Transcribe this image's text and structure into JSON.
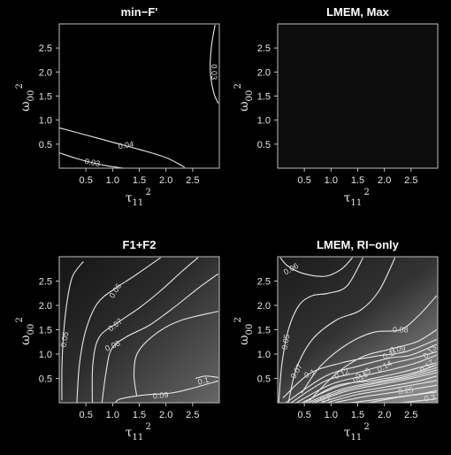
{
  "chart_data": [
    {
      "type": "contour",
      "title": "min−F'",
      "xlabel": "τ",
      "xlabel_sub": "11",
      "xlabel_sup": "2",
      "ylabel": "ω",
      "ylabel_sub": "00",
      "ylabel_sup": "2",
      "xlim": [
        0,
        3
      ],
      "ylim": [
        0,
        3
      ],
      "x_ticks": [
        "0.5",
        "1.0",
        "1.5",
        "2.0",
        "2.5"
      ],
      "y_ticks": [
        "0.5",
        "1.0",
        "1.5",
        "2.0",
        "2.5"
      ],
      "background": "#000000",
      "contours": [
        {
          "level": "0.04",
          "label_at": [
            1.25,
            0.48
          ],
          "label_angle": -10,
          "points": [
            [
              0,
              0.84
            ],
            [
              0.5,
              0.69
            ],
            [
              1.0,
              0.54
            ],
            [
              1.5,
              0.39
            ],
            [
              2.0,
              0.22
            ],
            [
              2.35,
              0.02
            ]
          ]
        },
        {
          "level": "0.03",
          "label_at": [
            0.62,
            0.12
          ],
          "label_angle": 12,
          "points": [
            [
              0,
              0.32
            ],
            [
              0.3,
              0.21
            ],
            [
              0.6,
              0.12
            ],
            [
              0.9,
              0.05
            ],
            [
              1.2,
              0.0
            ]
          ]
        },
        {
          "level": "0.03",
          "label_at": [
            2.9,
            2.0
          ],
          "label_angle": 90,
          "points": [
            [
              2.92,
              2.98
            ],
            [
              2.86,
              2.6
            ],
            [
              2.83,
              2.2
            ],
            [
              2.84,
              1.9
            ],
            [
              2.9,
              1.55
            ],
            [
              2.98,
              1.35
            ]
          ]
        }
      ]
    },
    {
      "type": "contour",
      "title": "LMEM, Max",
      "xlabel": "τ",
      "xlabel_sub": "11",
      "xlabel_sup": "2",
      "ylabel": "ω",
      "ylabel_sub": "00",
      "ylabel_sup": "2",
      "xlim": [
        0,
        3
      ],
      "ylim": [
        0,
        3
      ],
      "x_ticks": [
        "0.5",
        "1.0",
        "1.5",
        "2.0",
        "2.5"
      ],
      "y_ticks": [
        "0.5",
        "1.0",
        "1.5",
        "2.0",
        "2.5"
      ],
      "background": "#0c0c0c",
      "contours": []
    },
    {
      "type": "contour",
      "title": "F1+F2",
      "xlabel": "τ",
      "xlabel_sub": "11",
      "xlabel_sup": "2",
      "ylabel": "ω",
      "ylabel_sub": "00",
      "ylabel_sup": "2",
      "xlim": [
        0,
        3
      ],
      "ylim": [
        0,
        3
      ],
      "x_ticks": [
        "0.5",
        "1.0",
        "1.5",
        "2.0",
        "2.5"
      ],
      "y_ticks": [
        "0.5",
        "1.0",
        "1.5",
        "2.0",
        "2.5"
      ],
      "background": "gradient",
      "contours": [
        {
          "level": "0.05",
          "label_at": [
            0.1,
            1.3
          ],
          "label_angle": -80,
          "points": [
            [
              0.05,
              0.05
            ],
            [
              0.05,
              0.7
            ],
            [
              0.08,
              1.4
            ],
            [
              0.15,
              2.1
            ],
            [
              0.25,
              2.6
            ],
            [
              0.45,
              2.9
            ]
          ]
        },
        {
          "level": "0.06",
          "label_at": [
            1.05,
            2.3
          ],
          "label_angle": -58,
          "points": [
            [
              0.33,
              0.0
            ],
            [
              0.38,
              0.8
            ],
            [
              0.5,
              1.5
            ],
            [
              0.72,
              2.05
            ],
            [
              1.05,
              2.35
            ],
            [
              1.4,
              2.6
            ],
            [
              1.9,
              2.98
            ]
          ]
        },
        {
          "level": "0.07",
          "label_at": [
            1.05,
            1.6
          ],
          "label_angle": -38,
          "points": [
            [
              0.62,
              0.0
            ],
            [
              0.63,
              0.8
            ],
            [
              0.75,
              1.35
            ],
            [
              1.1,
              1.65
            ],
            [
              1.5,
              1.95
            ],
            [
              1.9,
              2.3
            ],
            [
              2.3,
              2.7
            ],
            [
              2.6,
              2.98
            ]
          ]
        },
        {
          "level": "0.08",
          "label_at": [
            1.0,
            1.17
          ],
          "label_angle": -25,
          "points": [
            [
              0.8,
              0.0
            ],
            [
              0.88,
              0.65
            ],
            [
              0.98,
              1.1
            ],
            [
              1.25,
              1.35
            ],
            [
              1.7,
              1.6
            ],
            [
              2.2,
              2.0
            ],
            [
              2.6,
              2.35
            ],
            [
              2.98,
              2.65
            ]
          ]
        },
        {
          "level": "0.09",
          "label_at": [
            1.9,
            0.15
          ],
          "label_angle": -5,
          "points": [
            [
              1.05,
              0.0
            ],
            [
              1.15,
              0.08
            ],
            [
              1.6,
              0.16
            ],
            [
              2.1,
              0.2
            ],
            [
              2.5,
              0.3
            ],
            [
              2.98,
              0.45
            ]
          ]
        },
        {
          "level": "0.1",
          "label_at": [
            2.7,
            0.45
          ],
          "label_angle": -15,
          "points": [
            [
              2.98,
              0.52
            ],
            [
              2.75,
              0.55
            ],
            [
              2.55,
              0.5
            ]
          ]
        },
        {
          "level": "0.09",
          "label_at": null,
          "label_angle": 0,
          "points": [
            [
              1.45,
              0.15
            ],
            [
              1.4,
              0.6
            ],
            [
              1.48,
              1.05
            ],
            [
              1.85,
              1.45
            ],
            [
              2.3,
              1.7
            ],
            [
              2.98,
              1.88
            ]
          ]
        }
      ]
    },
    {
      "type": "contour",
      "title": "LMEM, RI−only",
      "xlabel": "τ",
      "xlabel_sub": "11",
      "xlabel_sup": "2",
      "ylabel": "ω",
      "ylabel_sub": "00",
      "ylabel_sup": "2",
      "xlim": [
        0,
        3
      ],
      "ylim": [
        0,
        3
      ],
      "x_ticks": [
        "0.5",
        "1.0",
        "1.5",
        "2.0",
        "2.5"
      ],
      "y_ticks": [
        "0.5",
        "1.0",
        "1.5",
        "2.0",
        "2.5"
      ],
      "background": "gradient",
      "contours": [
        {
          "level": "0.06",
          "label_at": [
            0.25,
            2.75
          ],
          "label_angle": -30,
          "points": [
            [
              0.05,
              2.98
            ],
            [
              0.2,
              2.8
            ],
            [
              0.5,
              2.65
            ],
            [
              0.9,
              2.6
            ],
            [
              1.2,
              2.75
            ],
            [
              1.4,
              2.98
            ]
          ]
        },
        {
          "level": "0.05",
          "label_at": [
            0.15,
            1.25
          ],
          "label_angle": -80,
          "points": [
            [
              0.02,
              0.0
            ],
            [
              0.08,
              0.8
            ],
            [
              0.2,
              1.5
            ],
            [
              0.4,
              2.0
            ],
            [
              0.65,
              2.2
            ],
            [
              0.95,
              2.25
            ],
            [
              1.3,
              2.4
            ],
            [
              1.6,
              2.98
            ]
          ]
        },
        {
          "level": "0.07",
          "label_at": [
            0.35,
            0.65
          ],
          "label_angle": -60,
          "points": [
            [
              0.2,
              0.0
            ],
            [
              0.35,
              0.7
            ],
            [
              0.65,
              1.3
            ],
            [
              1.1,
              1.7
            ],
            [
              1.55,
              1.9
            ],
            [
              1.9,
              2.3
            ],
            [
              2.2,
              2.98
            ]
          ]
        },
        {
          "level": "0.08",
          "label_at": [
            2.3,
            1.5
          ],
          "label_angle": 0,
          "points": [
            [
              0.45,
              0.2
            ],
            [
              0.8,
              0.75
            ],
            [
              1.3,
              1.2
            ],
            [
              1.8,
              1.45
            ],
            [
              2.3,
              1.5
            ],
            [
              2.65,
              1.8
            ],
            [
              2.98,
              2.2
            ]
          ]
        },
        {
          "level": "0.09",
          "label_at": [
            2.25,
            1.1
          ],
          "label_angle": -8,
          "points": [
            [
              0.6,
              0.05
            ],
            [
              1.1,
              0.6
            ],
            [
              1.6,
              0.95
            ],
            [
              2.1,
              1.1
            ],
            [
              2.6,
              1.25
            ],
            [
              2.98,
              1.5
            ]
          ]
        },
        {
          "level": "0.1",
          "label_at": [
            0.6,
            0.6
          ],
          "label_angle": -25,
          "points": [
            [
              0.1,
              0.1
            ],
            [
              0.6,
              0.6
            ],
            [
              1.2,
              0.82
            ],
            [
              1.8,
              0.95
            ],
            [
              2.4,
              1.05
            ],
            [
              2.98,
              1.3
            ]
          ]
        },
        {
          "level": "0.11",
          "label_at": [
            2.1,
            1.0
          ],
          "label_angle": -25,
          "points": [
            [
              0.15,
              0.0
            ],
            [
              0.9,
              0.55
            ],
            [
              1.5,
              0.75
            ],
            [
              2.1,
              0.92
            ],
            [
              2.5,
              0.98
            ],
            [
              2.98,
              1.2
            ]
          ]
        },
        {
          "level": "0.12",
          "label_at": [
            1.2,
            0.6
          ],
          "label_angle": -25,
          "points": [
            [
              0.25,
              0.0
            ],
            [
              0.9,
              0.45
            ],
            [
              1.5,
              0.62
            ],
            [
              2.1,
              0.8
            ],
            [
              2.5,
              0.9
            ],
            [
              2.98,
              1.05
            ]
          ]
        },
        {
          "level": "0.13",
          "label_at": [
            2.85,
            1.05
          ],
          "label_angle": -45,
          "points": [
            [
              0.35,
              0.0
            ],
            [
              1.0,
              0.38
            ],
            [
              1.6,
              0.55
            ],
            [
              2.2,
              0.7
            ],
            [
              2.6,
              0.82
            ],
            [
              2.98,
              0.98
            ]
          ]
        },
        {
          "level": "0.14",
          "label_at": [
            2.0,
            0.75
          ],
          "label_angle": -28,
          "points": [
            [
              0.45,
              0.0
            ],
            [
              1.1,
              0.32
            ],
            [
              1.7,
              0.48
            ],
            [
              2.3,
              0.62
            ],
            [
              2.98,
              0.82
            ]
          ]
        },
        {
          "level": "0.15",
          "label_at": [
            1.6,
            0.6
          ],
          "label_angle": -28,
          "points": [
            [
              0.55,
              0.0
            ],
            [
              1.2,
              0.28
            ],
            [
              1.8,
              0.42
            ],
            [
              2.4,
              0.54
            ],
            [
              2.98,
              0.72
            ]
          ]
        },
        {
          "level": "0.16",
          "label_at": [
            1.55,
            0.52
          ],
          "label_angle": -28,
          "points": [
            [
              0.68,
              0.0
            ],
            [
              1.3,
              0.24
            ],
            [
              1.9,
              0.37
            ],
            [
              2.5,
              0.5
            ],
            [
              2.98,
              0.62
            ]
          ]
        },
        {
          "level": "0.17",
          "label_at": [
            2.8,
            0.75
          ],
          "label_angle": -40,
          "points": [
            [
              0.8,
              0.0
            ],
            [
              1.4,
              0.2
            ],
            [
              2.0,
              0.32
            ],
            [
              2.6,
              0.44
            ],
            [
              2.98,
              0.55
            ]
          ]
        },
        {
          "level": "0.2",
          "label_at": [
            0.9,
            0.1
          ],
          "label_angle": -15,
          "points": [
            [
              1.05,
              0.0
            ],
            [
              1.6,
              0.12
            ],
            [
              2.2,
              0.22
            ],
            [
              2.98,
              0.36
            ]
          ]
        },
        {
          "level": "0.25",
          "label_at": [
            2.4,
            0.25
          ],
          "label_angle": -8,
          "points": [
            [
              1.7,
              0.0
            ],
            [
              2.3,
              0.12
            ],
            [
              2.98,
              0.22
            ]
          ]
        },
        {
          "level": "0.3",
          "label_at": [
            2.85,
            0.1
          ],
          "label_angle": -8,
          "points": [
            [
              2.3,
              0.0
            ],
            [
              2.98,
              0.08
            ]
          ]
        },
        {
          "level": "",
          "label_at": null,
          "label_angle": 0,
          "points": [
            [
              0.5,
              0.0
            ],
            [
              1.1,
              0.35
            ],
            [
              1.8,
              0.46
            ],
            [
              2.5,
              0.6
            ],
            [
              2.98,
              0.78
            ]
          ]
        },
        {
          "level": "",
          "label_at": null,
          "label_angle": 0,
          "points": [
            [
              0.62,
              0.0
            ],
            [
              1.25,
              0.26
            ],
            [
              1.85,
              0.4
            ],
            [
              2.45,
              0.52
            ],
            [
              2.98,
              0.67
            ]
          ]
        },
        {
          "level": "",
          "label_at": null,
          "label_angle": 0,
          "points": [
            [
              0.92,
              0.0
            ],
            [
              1.5,
              0.17
            ],
            [
              2.1,
              0.28
            ],
            [
              2.7,
              0.4
            ],
            [
              2.98,
              0.46
            ]
          ]
        },
        {
          "level": "",
          "label_at": null,
          "label_angle": 0,
          "points": [
            [
              1.35,
              0.0
            ],
            [
              1.95,
              0.08
            ],
            [
              2.6,
              0.17
            ],
            [
              2.98,
              0.25
            ]
          ]
        }
      ]
    }
  ]
}
